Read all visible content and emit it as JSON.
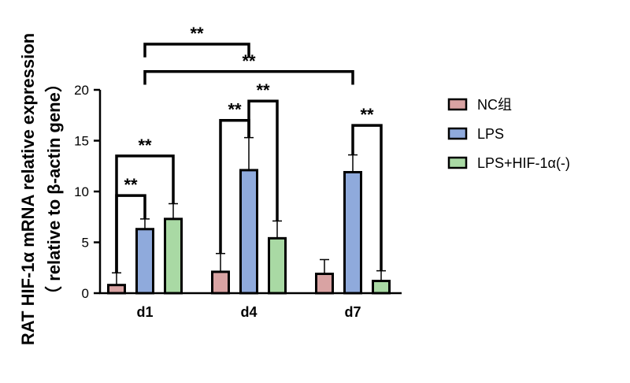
{
  "chart_data": {
    "type": "bar",
    "categories": [
      "d1",
      "d4",
      "d7"
    ],
    "series": [
      {
        "name": "NC组",
        "color": "#d9a3a3",
        "values": [
          0.8,
          2.1,
          1.9
        ],
        "errors": [
          1.2,
          1.8,
          1.4
        ]
      },
      {
        "name": "LPS",
        "color": "#8faadc",
        "values": [
          6.3,
          12.1,
          11.9
        ],
        "errors": [
          1.0,
          3.2,
          1.7
        ]
      },
      {
        "name": "LPS+HIF-1α(-)",
        "color": "#a9d9a4",
        "values": [
          7.3,
          5.4,
          1.2
        ],
        "errors": [
          1.5,
          1.7,
          1.0
        ]
      }
    ],
    "ylabel_line1": "RAT HIF-1α mRNA relative expression",
    "ylabel_line2": "（ relative to β-actin gene）",
    "ylim": [
      0,
      20
    ],
    "yticks": [
      0,
      5,
      10,
      15,
      20
    ],
    "ytick_labels": [
      "0",
      "5",
      "10",
      "15",
      "20"
    ],
    "legend_position": "right",
    "significance": [
      {
        "label": "**",
        "from": "d1/NC组",
        "to": "d1/LPS",
        "bracket_y": 9.6,
        "left_end": 2.0,
        "right_end": 7.3
      },
      {
        "label": "**",
        "from": "d1/NC组",
        "to": "d1/LPS+HIF-1α(-)",
        "bracket_y": 13.5,
        "left_end": 2.0,
        "right_end": 8.8
      },
      {
        "label": "**",
        "from": "d4/NC组",
        "to": "d4/LPS",
        "bracket_y": 17.0,
        "left_end": 3.9,
        "right_end": 15.3
      },
      {
        "label": "**",
        "from": "d4/LPS",
        "to": "d4/LPS+HIF-1α(-)",
        "bracket_y": 18.9,
        "left_end": 15.3,
        "right_end": 7.1
      },
      {
        "label": "**",
        "from": "d7/LPS",
        "to": "d7/LPS+HIF-1α(-)",
        "bracket_y": 16.5,
        "left_end": 13.6,
        "right_end": 2.2
      },
      {
        "label": "**",
        "from": "d1",
        "to": "d4",
        "bracket_y": 24.5,
        "left_end": 23.2,
        "right_end": 23.2
      },
      {
        "label": "**",
        "from": "d1",
        "to": "d7",
        "bracket_y": 21.8,
        "left_end": 20.5,
        "right_end": 20.5
      }
    ]
  }
}
